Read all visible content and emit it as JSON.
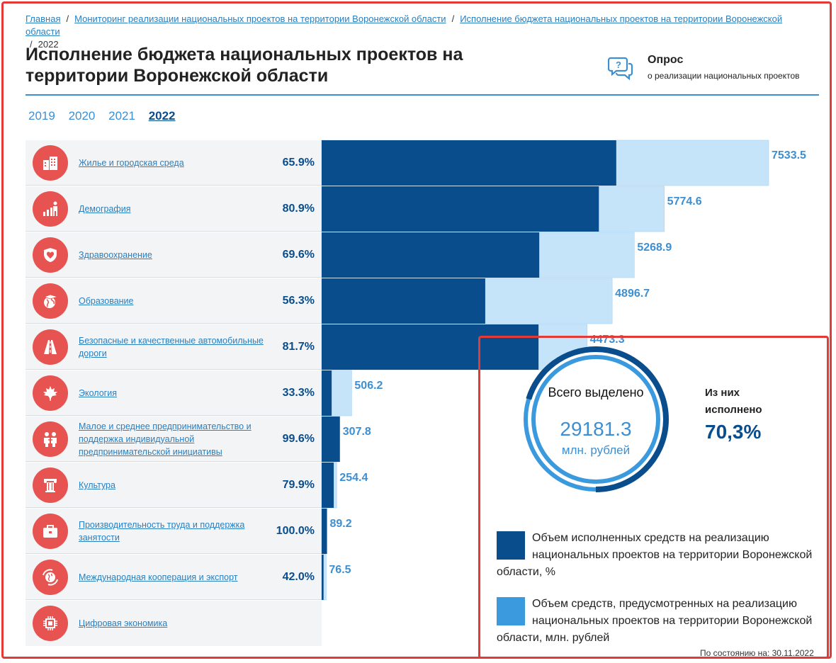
{
  "breadcrumb": {
    "items": [
      "Главная",
      "Мониторинг реализации национальных проектов на территории Воронежской области",
      "Исполнение бюджета национальных проектов на территории Воронежской области"
    ],
    "current": "2022"
  },
  "page": {
    "title_line1": "Исполнение бюджета национальных проектов на",
    "title_line2": "территории Воронежской области"
  },
  "survey": {
    "title": "Опрос",
    "subtitle": "о реализации национальных проектов",
    "icon": "chat-question-icon"
  },
  "years": [
    "2019",
    "2020",
    "2021",
    "2022"
  ],
  "active_year": "2022",
  "projects": [
    {
      "label": "Жилье и городская среда",
      "percent": "65.9%",
      "icon": "buildings-icon"
    },
    {
      "label": "Демография",
      "percent": "80.9%",
      "icon": "demography-icon"
    },
    {
      "label": "Здравоохранение",
      "percent": "69.6%",
      "icon": "health-shield-icon"
    },
    {
      "label": "Образование",
      "percent": "56.3%",
      "icon": "education-globe-icon"
    },
    {
      "label": "Безопасные и качественные автомобильные дороги",
      "percent": "81.7%",
      "icon": "road-icon"
    },
    {
      "label": "Экология",
      "percent": "33.3%",
      "icon": "maple-leaf-icon"
    },
    {
      "label": "Малое и среднее предпринимательство и поддержка индивидуальной предпринимательской инициативы",
      "percent": "99.6%",
      "icon": "business-people-icon"
    },
    {
      "label": "Культура",
      "percent": "79.9%",
      "icon": "column-icon"
    },
    {
      "label": "Производительность труда и поддержка занятости",
      "percent": "100.0%",
      "icon": "briefcase-icon"
    },
    {
      "label": "Международная кооперация и экспорт",
      "percent": "42.0%",
      "icon": "globe-arrows-icon"
    },
    {
      "label": "Цифровая экономика",
      "percent": "",
      "icon": "chip-icon"
    }
  ],
  "chart_data": {
    "type": "bar",
    "orientation": "horizontal",
    "unit": "млн. рублей",
    "categories": [
      "Жилье и городская среда",
      "Демография",
      "Здравоохранение",
      "Образование",
      "Безопасные и качественные автомобильные дороги",
      "Экология",
      "Малое и среднее предпринимательство и поддержка индивидуальной предпринимательской инициативы",
      "Культура",
      "Производительность труда и поддержка занятости",
      "Международная кооперация и экспорт"
    ],
    "series": [
      {
        "name": "Объем средств, предусмотренных на реализацию национальных проектов на территории Воронежской области, млн. рублей",
        "values": [
          7533.5,
          5774.6,
          5268.9,
          4896.7,
          4473.3,
          506.2,
          307.8,
          254.4,
          89.2,
          76.5
        ],
        "labels": [
          "7533.5",
          "5774.6",
          "5268.9",
          "4896.7",
          "4473.3",
          "506.2",
          "307.8",
          "254.4",
          "89.2",
          "76.5"
        ]
      },
      {
        "name": "Объем исполненных средств на реализацию национальных проектов на территории Воронежской области, %",
        "values": [
          65.9,
          80.9,
          69.6,
          56.3,
          81.7,
          33.3,
          99.6,
          79.9,
          100.0,
          42.0
        ]
      }
    ],
    "xlim": [
      0,
      7533.5
    ],
    "colors": {
      "executed": "#0a4d8c",
      "allocated": "#c5e3f9",
      "label": "#3d8fd1"
    }
  },
  "summary": {
    "total_label": "Всего выделено",
    "total_value": "29181.3",
    "total_unit": "млн. рублей",
    "done_label": "Из них исполнено",
    "done_value": "70,3%",
    "done_fraction": 0.703
  },
  "legend": {
    "executed": "Объем исполненных средств на реализацию национальных проектов на территории Воронежской области, %",
    "allocated": "Объем средств, предусмотренных на реализацию национальных проектов на территории Воронежской области, млн. рублей",
    "executed_color": "#0a4d8c",
    "allocated_color": "#3b99dd"
  },
  "date_label": "По состоянию на: 30.11.2022"
}
